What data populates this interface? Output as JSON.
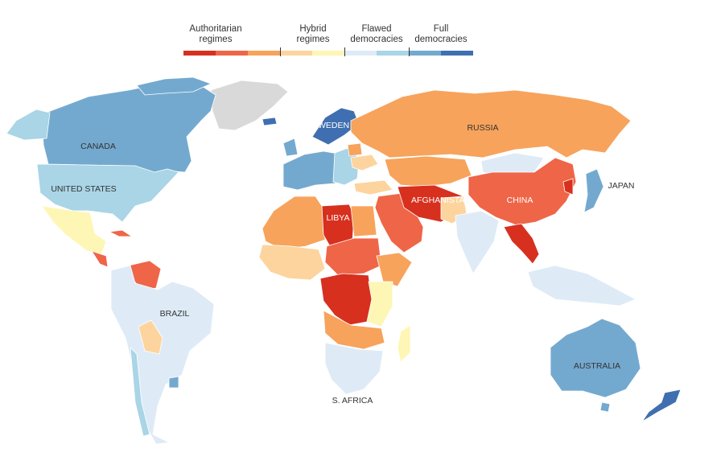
{
  "legend": {
    "categories": [
      {
        "label": "Authoritarian\nregimes",
        "colors": [
          "#d7301f",
          "#ef6548",
          "#f7a35c"
        ]
      },
      {
        "label": "Hybrid\nregimes",
        "colors": [
          "#fdd49e",
          "#fef6b5"
        ]
      },
      {
        "label": "Flawed\ndemocracies",
        "colors": [
          "#deebf7",
          "#a9d5e6"
        ]
      },
      {
        "label": "Full\ndemocracies",
        "colors": [
          "#74a9cf",
          "#3f6fb0"
        ]
      }
    ]
  },
  "labels": {
    "canada": "CANADA",
    "united_states": "UNITED STATES",
    "brazil": "BRAZIL",
    "libya": "LIBYA",
    "russia": "RUSSIA",
    "sweden": "SWEDEN",
    "afghanistan": "AFGHANISTAN",
    "china": "CHINA",
    "japan": "JAPAN",
    "australia": "AUSTRALIA",
    "s_africa": "S. AFRICA"
  },
  "colors": {
    "auth_dark": "#d7301f",
    "auth_mid": "#ef6548",
    "auth_light": "#f7a35c",
    "hybrid_mid": "#fdd49e",
    "hybrid_light": "#fef6b5",
    "flawed_light": "#deebf7",
    "flawed_mid": "#a9d5e6",
    "full_light": "#74a9cf",
    "full_dark": "#3f6fb0",
    "no_data": "#d9d9d9"
  }
}
